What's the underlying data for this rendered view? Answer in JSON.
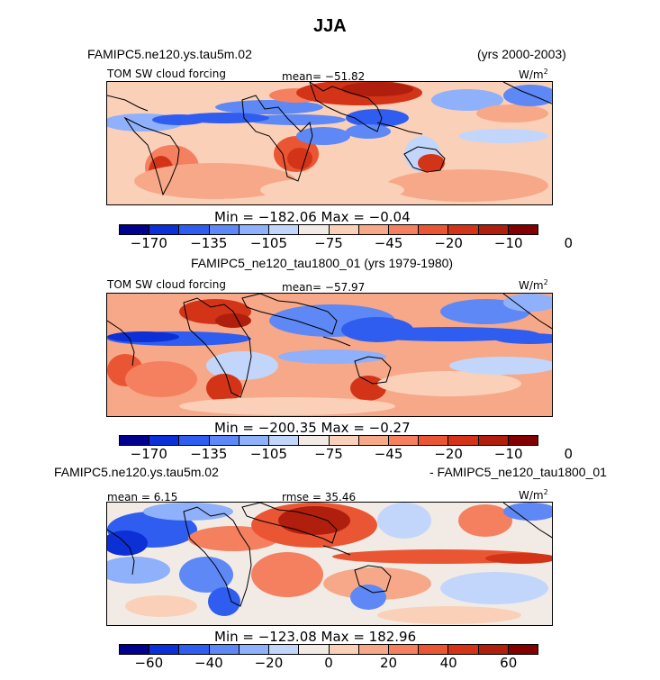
{
  "title": "JJA",
  "header": {
    "left": "FAMIPC5.ne120.ys.tau5m.02",
    "right": "(yrs 2000-2003)"
  },
  "panels": [
    {
      "variable": "TOM SW cloud forcing",
      "stat_left": "",
      "stat_center": "mean= −51.82",
      "units": "W/m",
      "units_exp": "2",
      "minmax": "Min = −182.06 Max =  −0.04",
      "caption_below": "FAMIPC5_ne120_tau1800_01 (yrs 1979-1980)"
    },
    {
      "variable": "TOM SW cloud forcing",
      "stat_left": "",
      "stat_center": "mean= −57.97",
      "units": "W/m",
      "units_exp": "2",
      "minmax": "Min = −200.35 Max =  −0.27",
      "caption_left": "FAMIPC5.ne120.ys.tau5m.02",
      "caption_right": "- FAMIPC5_ne120_tau1800_01"
    },
    {
      "variable": "",
      "stat_left": "mean =   6.15",
      "stat_center": "rmse =  35.46",
      "units": "W/m",
      "units_exp": "2",
      "minmax": "Min = −123.08 Max = 182.96"
    }
  ],
  "chart_data": [
    {
      "type": "heatmap",
      "title": "TOM SW cloud forcing (FAMIPC5.ne120.ys.tau5m.02, yrs 2000-2003)",
      "units": "W/m2",
      "mean": -51.82,
      "min": -182.06,
      "max": -0.04,
      "colorbar_labels": [
        "−170",
        "−135",
        "−105",
        "−75",
        "−45",
        "−20",
        "−10",
        "0"
      ]
    },
    {
      "type": "heatmap",
      "title": "TOM SW cloud forcing (FAMIPC5_ne120_tau1800_01, yrs 1979-1980)",
      "units": "W/m2",
      "mean": -57.97,
      "min": -200.35,
      "max": -0.27,
      "colorbar_labels": [
        "−170",
        "−135",
        "−105",
        "−75",
        "−45",
        "−20",
        "−10",
        "0"
      ]
    },
    {
      "type": "heatmap",
      "title": "Difference: FAMIPC5.ne120.ys.tau5m.02 - FAMIPC5_ne120_tau1800_01",
      "units": "W/m2",
      "mean": 6.15,
      "rmse": 35.46,
      "min": -123.08,
      "max": 182.96,
      "colorbar_labels": [
        "−60",
        "−40",
        "−20",
        "0",
        "20",
        "40",
        "60"
      ]
    }
  ],
  "colors": {
    "scale": [
      "#00008f",
      "#0c2fd6",
      "#2f5df0",
      "#5d88f5",
      "#8fb0fa",
      "#c2d6fb",
      "#f2ebe5",
      "#fbd0b8",
      "#f7a888",
      "#f48060",
      "#ea5634",
      "#d33418",
      "#b01e0d",
      "#820000"
    ]
  }
}
